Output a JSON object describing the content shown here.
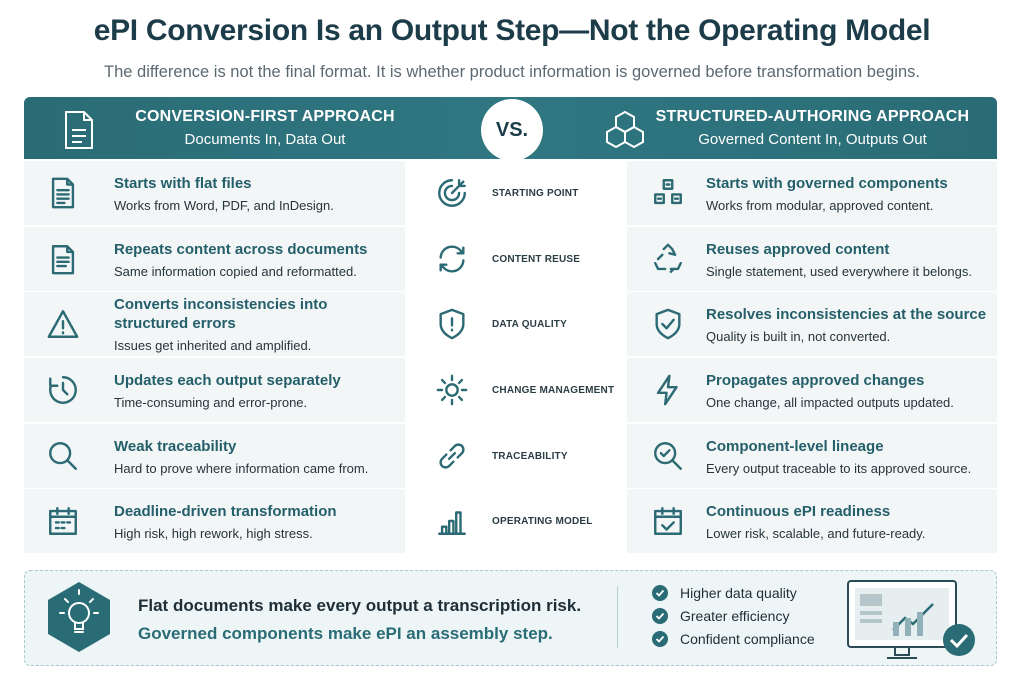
{
  "header": {
    "title": "ePI Conversion Is an Output Step—Not the Operating Model",
    "subtitle": "The difference is not the final format. It is whether product information is governed before transformation begins."
  },
  "columns": {
    "left": {
      "title": "CONVERSION-FIRST APPROACH",
      "subtitle": "Documents In, Data Out"
    },
    "vs": "VS.",
    "right": {
      "title": "STRUCTURED-AUTHORING APPROACH",
      "subtitle": "Governed Content In, Outputs Out"
    }
  },
  "rows": [
    {
      "left": {
        "title": "Starts with flat files",
        "text": "Works from Word, PDF, and InDesign."
      },
      "topic": "STARTING POINT",
      "right": {
        "title": "Starts with governed components",
        "text": "Works from modular, approved content."
      }
    },
    {
      "left": {
        "title": "Repeats content across documents",
        "text": "Same information copied and reformatted."
      },
      "topic": "CONTENT REUSE",
      "right": {
        "title": "Reuses approved content",
        "text": "Single statement, used everywhere it belongs."
      }
    },
    {
      "left": {
        "title": "Converts inconsistencies into structured errors",
        "text": "Issues get inherited and amplified."
      },
      "topic": "DATA QUALITY",
      "right": {
        "title": "Resolves inconsistencies at the source",
        "text": "Quality is built in, not converted."
      }
    },
    {
      "left": {
        "title": "Updates each output separately",
        "text": "Time-consuming and error-prone."
      },
      "topic": "CHANGE MANAGEMENT",
      "right": {
        "title": "Propagates approved changes",
        "text": "One change, all impacted outputs updated."
      }
    },
    {
      "left": {
        "title": "Weak traceability",
        "text": "Hard to prove where information came from."
      },
      "topic": "TRACEABILITY",
      "right": {
        "title": "Component-level lineage",
        "text": "Every output traceable to its approved source."
      }
    },
    {
      "left": {
        "title": "Deadline-driven transformation",
        "text": "High risk, high rework, high stress."
      },
      "topic": "OPERATING MODEL",
      "right": {
        "title": "Continuous ePI readiness",
        "text": "Lower risk, scalable, and future-ready."
      }
    }
  ],
  "footer": {
    "statement": [
      "Flat documents make every output a transcription risk.",
      "Governed components make ePI an assembly step."
    ],
    "benefits": [
      "Higher data quality",
      "Greater efficiency",
      "Confident compliance"
    ]
  }
}
